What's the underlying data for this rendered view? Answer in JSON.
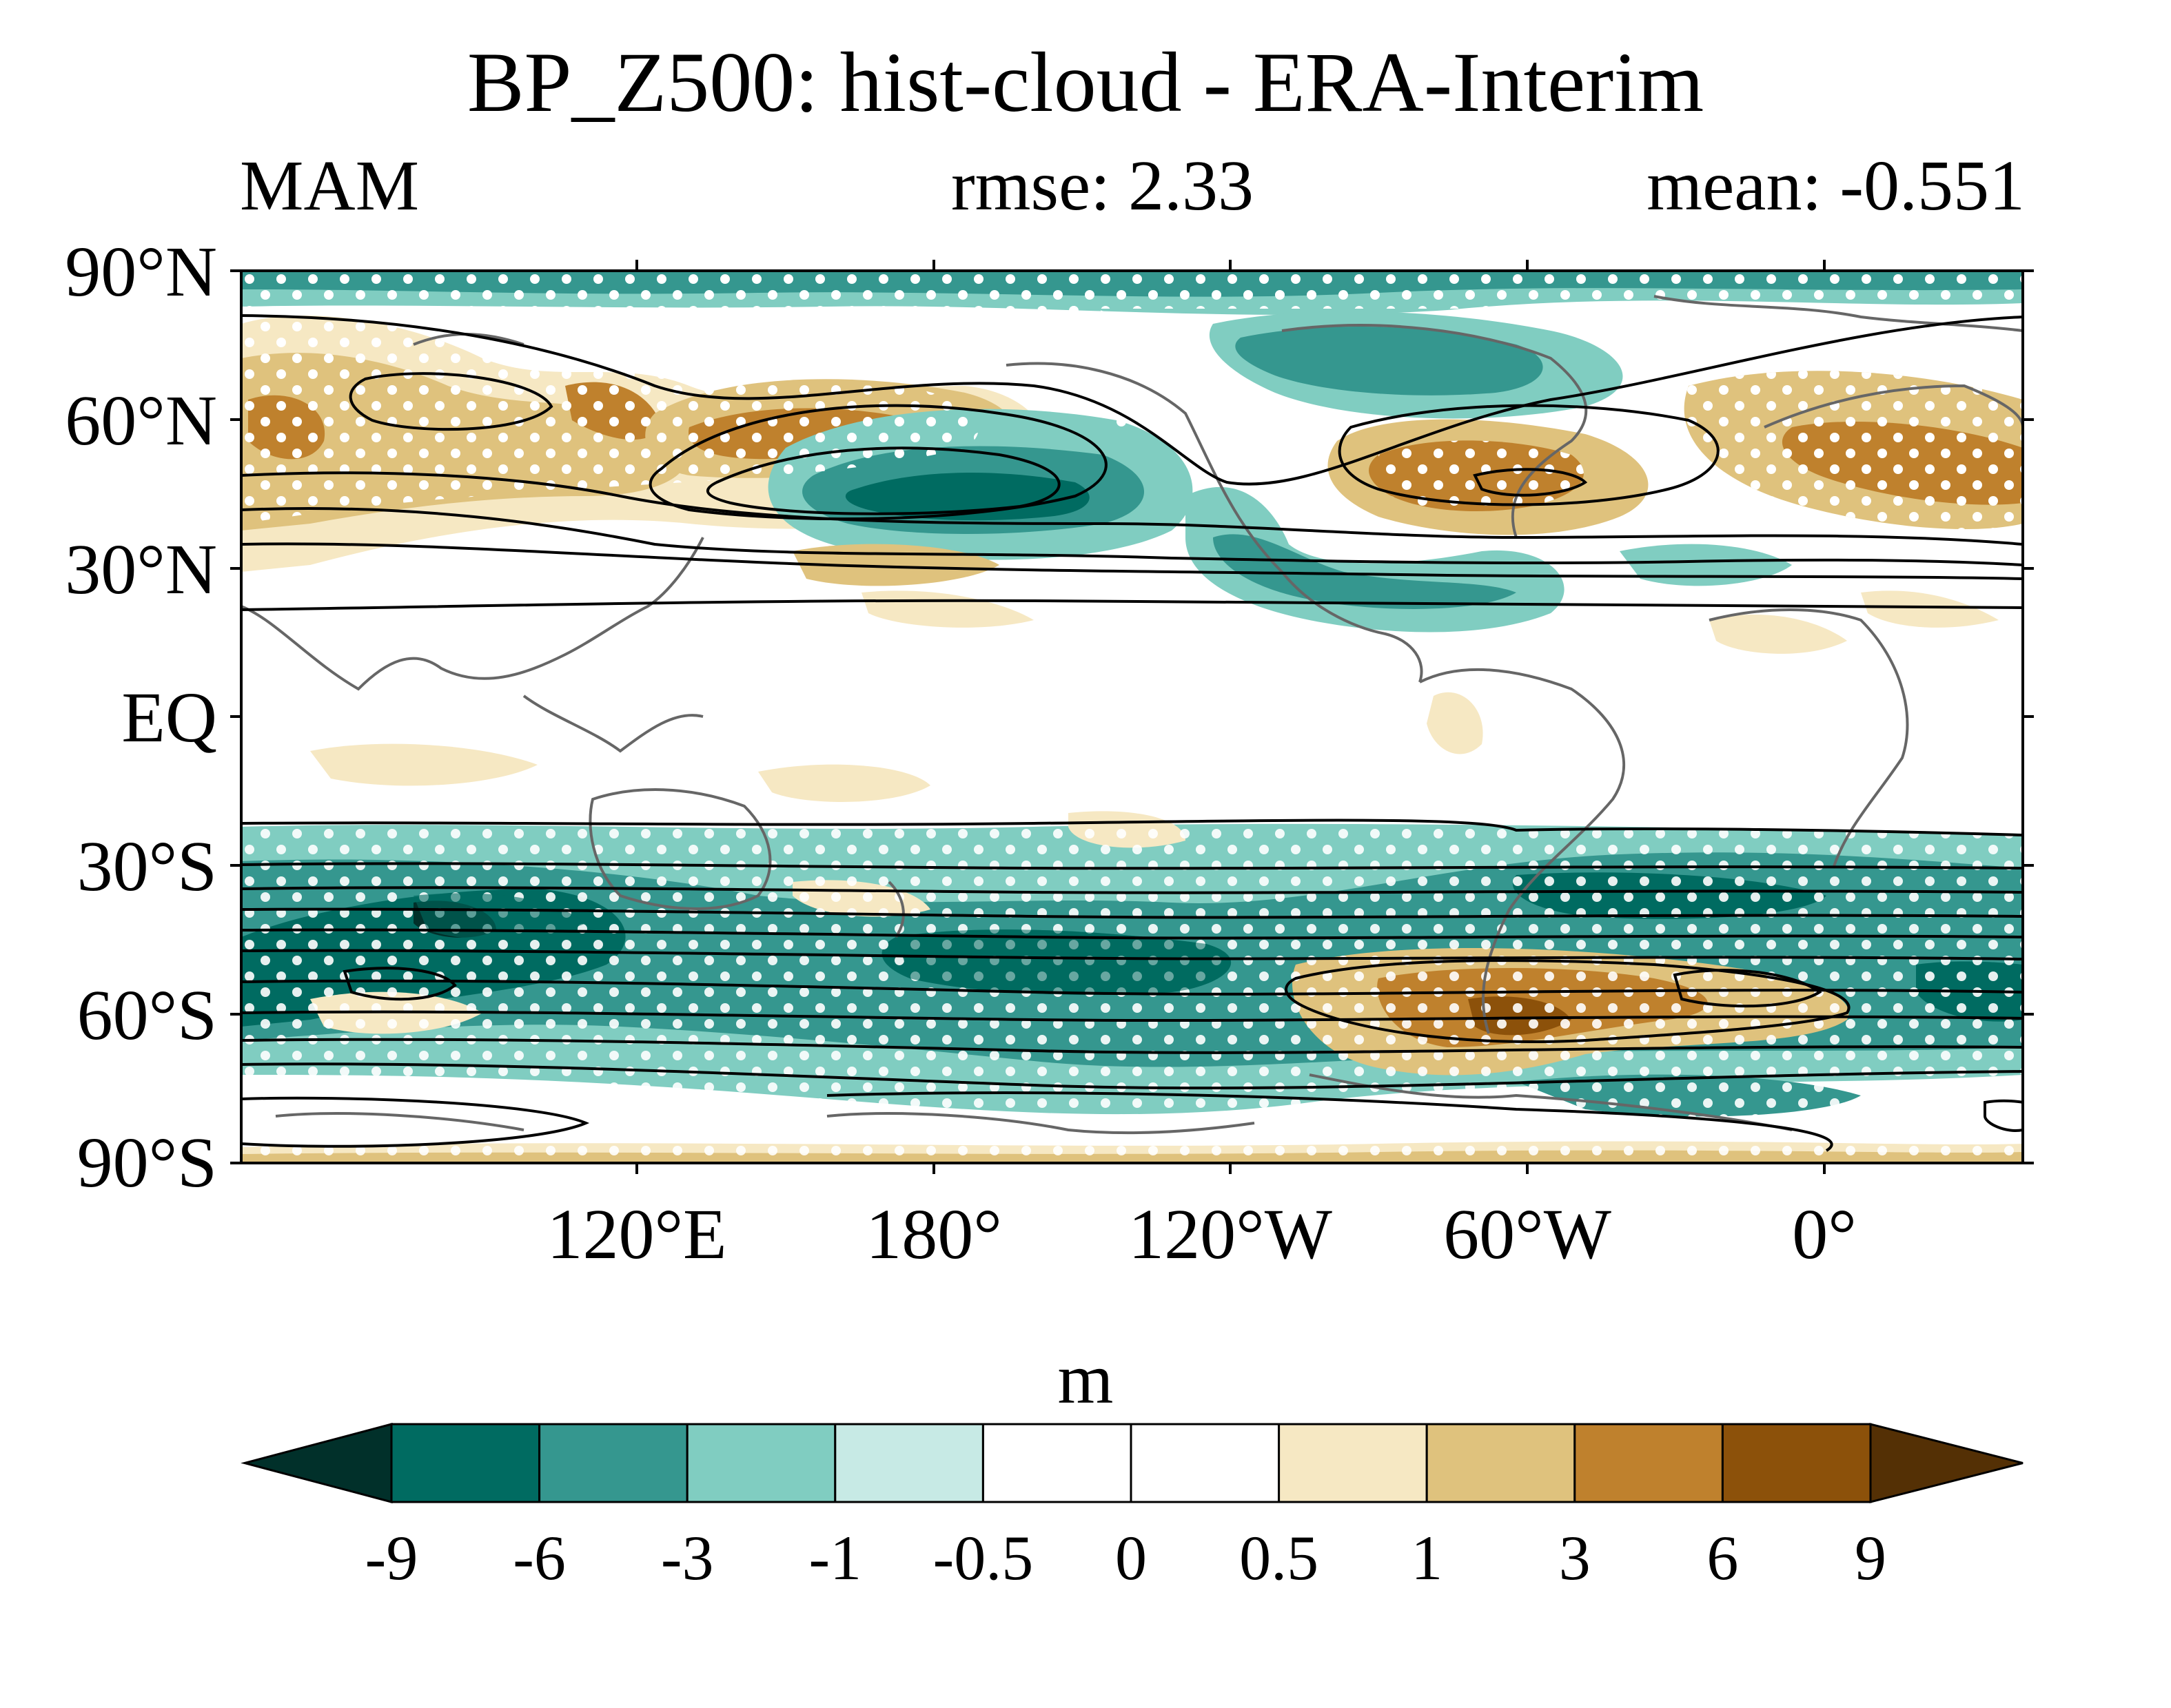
{
  "title": "BP_Z500: hist-cloud - ERA-Interim",
  "subtitle": {
    "left": "MAM",
    "center": "rmse: 2.33",
    "right": "mean: -0.551"
  },
  "lat_labels": [
    "90°N",
    "60°N",
    "30°N",
    "EQ",
    "30°S",
    "60°S",
    "90°S"
  ],
  "lon_labels": [
    "120°E",
    "180°",
    "120°W",
    "60°W",
    "0°"
  ],
  "colorbar": {
    "units": "m",
    "levels": [
      "-9",
      "-6",
      "-3",
      "-1",
      "-0.5",
      "0",
      "0.5",
      "1",
      "3",
      "6",
      "9"
    ],
    "colors": [
      "#01302a",
      "#006b61",
      "#35978f",
      "#80cdc1",
      "#c7eae5",
      "#ffffff",
      "#ffffff",
      "#f6e8c3",
      "#dfc27d",
      "#bf812d",
      "#8c510a",
      "#543005"
    ]
  }
}
